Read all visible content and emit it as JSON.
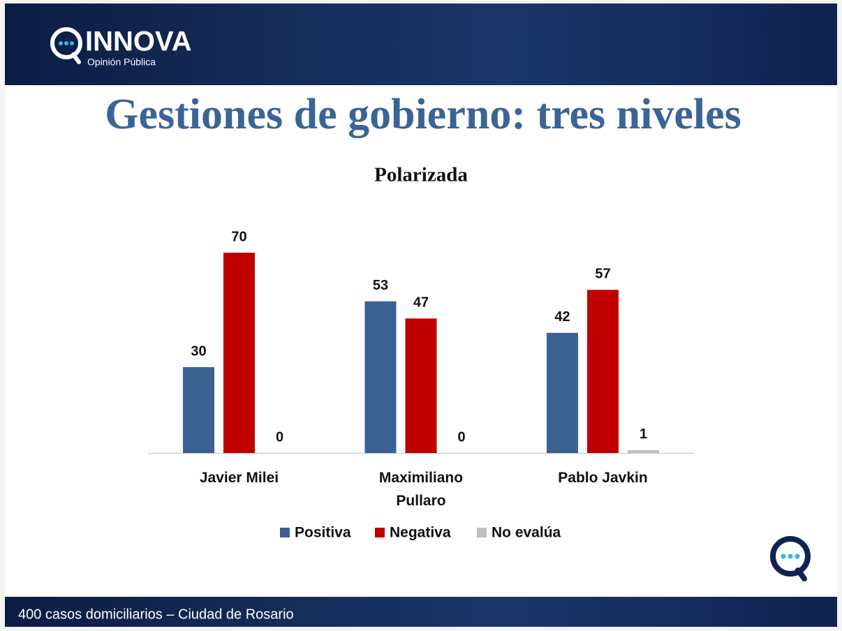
{
  "header": {
    "logo": "INNOVA",
    "tagline": "Opinión Pública"
  },
  "title": "Gestiones de gobierno: tres niveles",
  "chart_data": {
    "type": "bar",
    "title": "Polarizada",
    "categories": [
      "Javier Milei",
      "Maximiliano Pullaro",
      "Pablo Javkin"
    ],
    "series": [
      {
        "name": "Positiva",
        "color": "#3a6190",
        "values": [
          30,
          53,
          42
        ]
      },
      {
        "name": "Negativa",
        "color": "#c00000",
        "values": [
          70,
          47,
          57
        ]
      },
      {
        "name": "No evalúa",
        "color": "#bfbfbf",
        "values": [
          0,
          0,
          1
        ]
      }
    ]
  },
  "footer": "400 casos domiciliarios – Ciudad de Rosario"
}
